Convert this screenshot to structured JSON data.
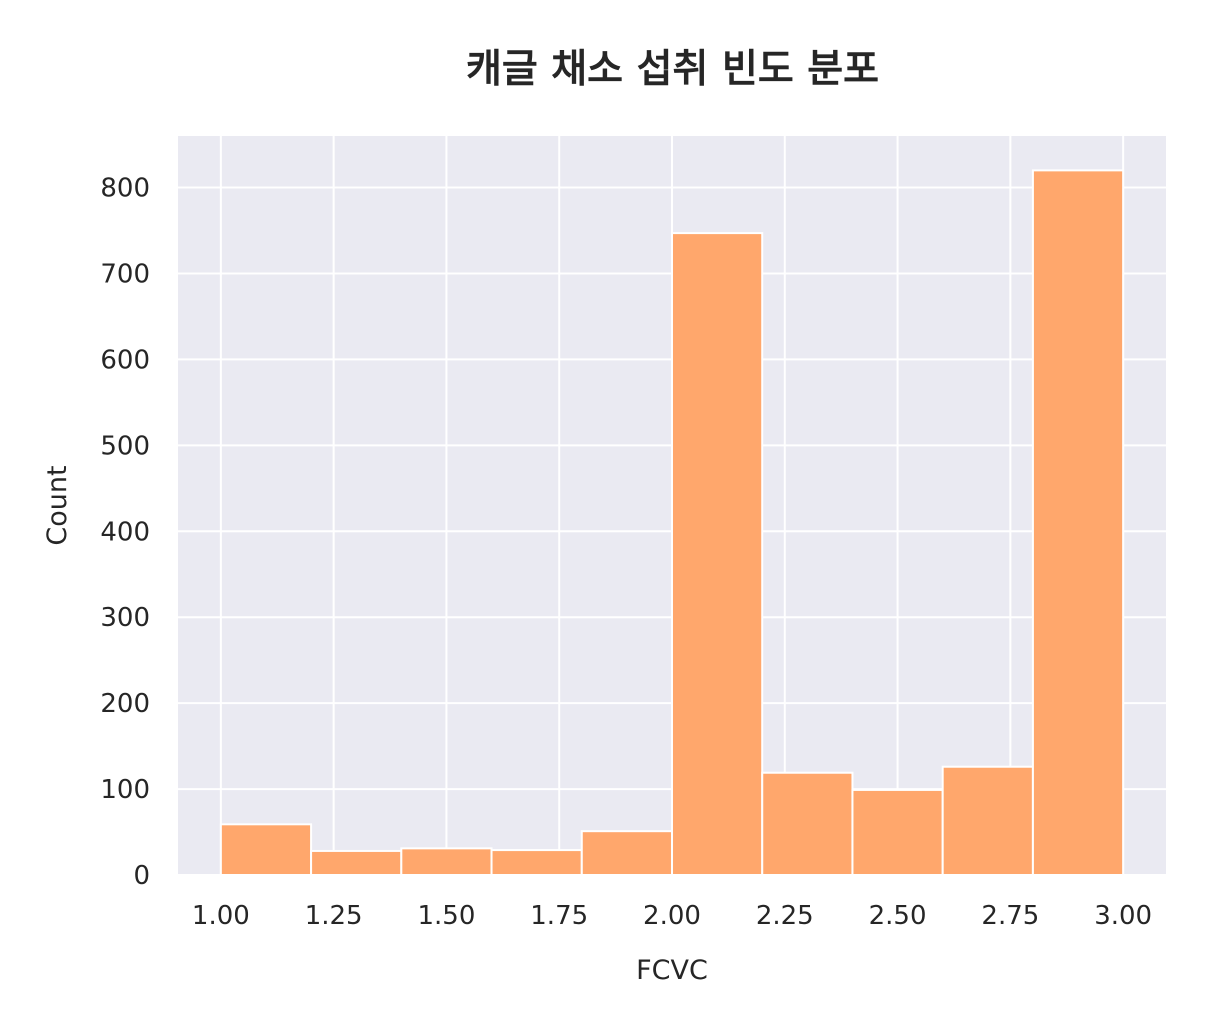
{
  "chart_data": {
    "type": "histogram",
    "title": "캐글 채소 섭취 빈도 분포",
    "xlabel": "FCVC",
    "ylabel": "Count",
    "bin_edges": [
      1.0,
      1.2,
      1.4,
      1.6,
      1.8,
      2.0,
      2.2,
      2.4,
      2.6,
      2.8,
      3.0
    ],
    "values": [
      59,
      28,
      31,
      29,
      51,
      747,
      119,
      99,
      126,
      820
    ],
    "xlim": [
      0.905,
      3.095
    ],
    "ylim": [
      0,
      860
    ],
    "x_ticks": [
      1.0,
      1.25,
      1.5,
      1.75,
      2.0,
      2.25,
      2.5,
      2.75,
      3.0
    ],
    "x_tick_labels": [
      "1.00",
      "1.25",
      "1.50",
      "1.75",
      "2.00",
      "2.25",
      "2.50",
      "2.75",
      "3.00"
    ],
    "y_ticks": [
      0,
      100,
      200,
      300,
      400,
      500,
      600,
      700,
      800
    ],
    "y_tick_labels": [
      "0",
      "100",
      "200",
      "300",
      "400",
      "500",
      "600",
      "700",
      "800"
    ],
    "grid": true,
    "colors": {
      "bar": "#ffa76c",
      "bar_edge": "#ffffff",
      "plot_background": "#eaeaf2",
      "grid": "#ffffff"
    }
  }
}
